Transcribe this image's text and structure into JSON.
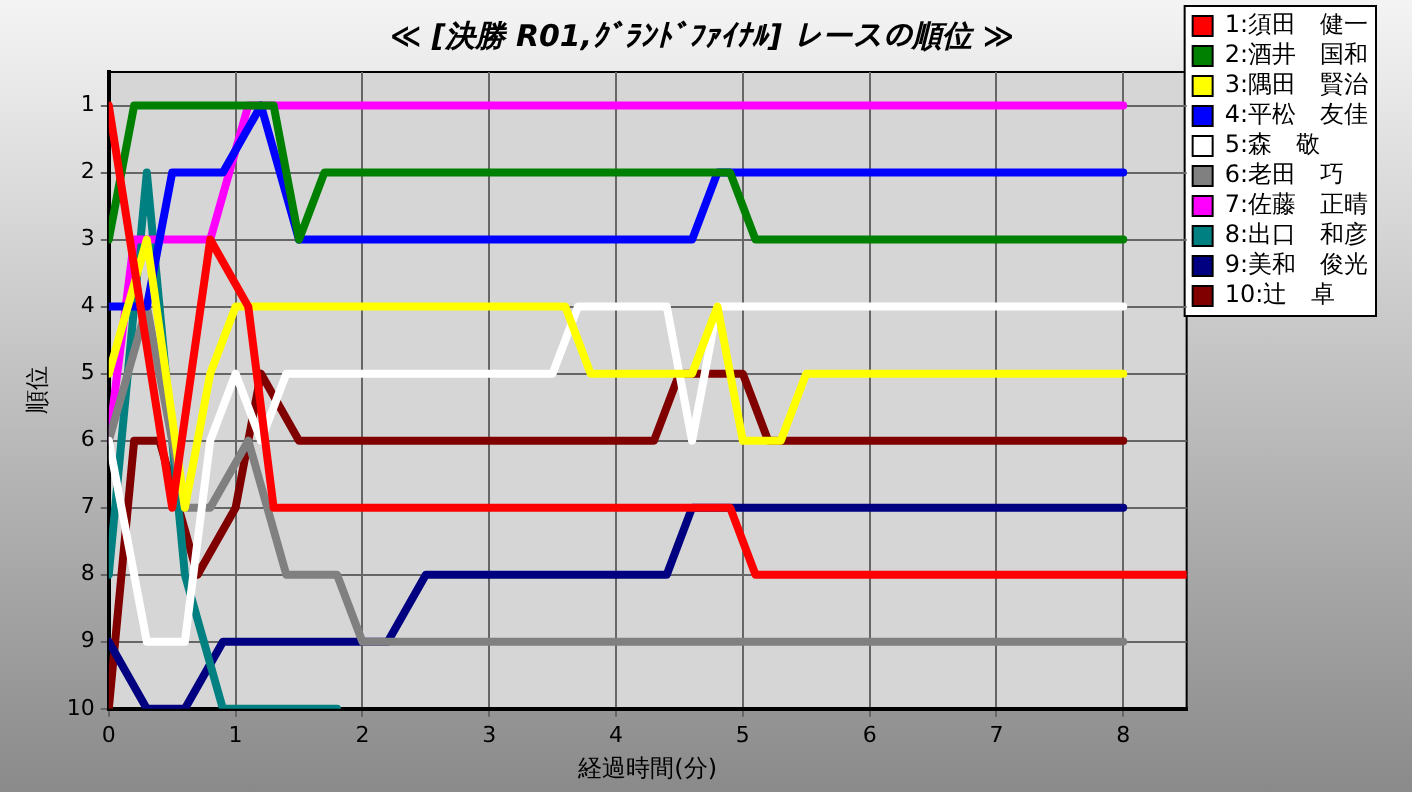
{
  "chart_data": {
    "type": "line",
    "title": "≪ [決勝 R01,ｸﾞﾗﾝﾄﾞﾌｧｲﾅﾙ] レースの順位 ≫",
    "xlabel": "経過時間(分)",
    "ylabel": "順位",
    "xlim": [
      0,
      8.5
    ],
    "xticks": [
      0,
      1,
      2,
      3,
      4,
      5,
      6,
      7,
      8
    ],
    "ylim": [
      10,
      0.5
    ],
    "yticks": [
      1,
      2,
      3,
      4,
      5,
      6,
      7,
      8,
      9,
      10
    ],
    "grid": true,
    "legend": "top right",
    "marker": "none",
    "line_style": "solid",
    "series": [
      {
        "name": "1:須田　健一",
        "color": "#ff0000",
        "x": [
          0,
          0.5,
          0.8,
          1.1,
          1.3,
          4.9,
          5.1,
          8.5
        ],
        "values": [
          1,
          7,
          3,
          4,
          7,
          7,
          8,
          8
        ]
      },
      {
        "name": "2:酒井　国和",
        "color": "#008000",
        "x": [
          0,
          0.2,
          1.3,
          1.5,
          1.7,
          4.9,
          5.1,
          8
        ],
        "values": [
          3,
          1,
          1,
          3,
          2,
          2,
          3,
          3
        ]
      },
      {
        "name": "3:隅田　賢治",
        "color": "#ffff00",
        "x": [
          0,
          0.3,
          0.6,
          0.8,
          1,
          3.6,
          3.8,
          4.6,
          4.8,
          5,
          5.3,
          5.5,
          8
        ],
        "values": [
          5,
          3,
          7,
          5,
          4,
          4,
          5,
          5,
          4,
          6,
          6,
          5,
          5
        ]
      },
      {
        "name": "4:平松　友佳",
        "color": "#0000ff",
        "x": [
          0,
          0.3,
          0.5,
          0.9,
          1.2,
          1.5,
          4.6,
          4.8,
          8
        ],
        "values": [
          4,
          4,
          2,
          2,
          1,
          3,
          3,
          2,
          2
        ]
      },
      {
        "name": "5:森　敬",
        "color": "#ffffff",
        "x": [
          0,
          0.3,
          0.6,
          0.8,
          1,
          1.2,
          1.4,
          3.5,
          3.7,
          4.4,
          4.6,
          4.8,
          8
        ],
        "values": [
          6,
          9,
          9,
          6,
          5,
          6,
          5,
          5,
          4,
          4,
          6,
          4,
          4
        ]
      },
      {
        "name": "6:老田　巧",
        "color": "#808080",
        "x": [
          0,
          0.3,
          0.6,
          0.8,
          1.1,
          1.4,
          1.8,
          2,
          8
        ],
        "values": [
          6,
          4,
          7,
          7,
          6,
          8,
          8,
          9,
          9
        ]
      },
      {
        "name": "7:佐藤　正晴",
        "color": "#ff00ff",
        "x": [
          0,
          0.2,
          0.8,
          1.1,
          8
        ],
        "values": [
          6,
          3,
          3,
          1,
          1
        ]
      },
      {
        "name": "8:出口　和彦",
        "color": "#008080",
        "x": [
          0,
          0.3,
          0.6,
          0.9,
          1.8
        ],
        "values": [
          8,
          2,
          8,
          10,
          10
        ]
      },
      {
        "name": "9:美和　俊光",
        "color": "#000080",
        "x": [
          0,
          0.3,
          0.6,
          0.9,
          2.2,
          2.5,
          4.4,
          4.6,
          8
        ],
        "values": [
          9,
          10,
          10,
          9,
          9,
          8,
          8,
          7,
          7
        ]
      },
      {
        "name": "10:辻　卓",
        "color": "#800000",
        "x": [
          0,
          0.2,
          0.4,
          0.7,
          1,
          1.2,
          1.5,
          4.3,
          4.5,
          5,
          5.2,
          8
        ],
        "values": [
          10,
          6,
          6,
          8,
          7,
          5,
          6,
          6,
          5,
          5,
          6,
          6
        ]
      }
    ]
  }
}
